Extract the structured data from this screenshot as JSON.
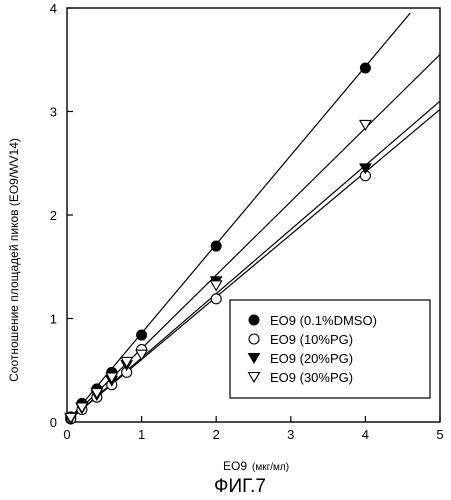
{
  "chart_data": {
    "type": "scatter",
    "xlabel": "EO9",
    "xlabel_unit": "(мкг/мл)",
    "ylabel": "Соотношение площадей пиков (EO9/WV14)",
    "caption": "ФИГ.7",
    "xlim": [
      0,
      5
    ],
    "ylim": [
      0,
      4
    ],
    "xticks": [
      0,
      1,
      2,
      3,
      4,
      5
    ],
    "yticks": [
      0,
      1,
      2,
      3,
      4
    ],
    "grid": false,
    "legend_position": "bottom-right",
    "series": [
      {
        "name": "EO9 (0.1%DMSO)",
        "marker": "filled-circle",
        "x": [
          0.05,
          0.2,
          0.4,
          0.6,
          1.0,
          2.0,
          4.0
        ],
        "y": [
          0.05,
          0.18,
          0.32,
          0.48,
          0.84,
          1.7,
          3.42
        ],
        "fit": {
          "x0": 0,
          "y0": 0,
          "x1": 4.6,
          "y1": 3.95
        }
      },
      {
        "name": "EO9 (10%PG)",
        "marker": "open-circle",
        "x": [
          0.05,
          0.2,
          0.4,
          0.6,
          0.8,
          1.0,
          2.0,
          4.0
        ],
        "y": [
          0.03,
          0.12,
          0.24,
          0.36,
          0.48,
          0.7,
          1.19,
          2.38
        ],
        "fit": {
          "x0": 0,
          "y0": 0,
          "x1": 5.0,
          "y1": 3.02
        }
      },
      {
        "name": "EO9 (20%PG)",
        "marker": "filled-triangle-down",
        "x": [
          0.05,
          0.2,
          0.4,
          0.6,
          0.8,
          2.0,
          4.0
        ],
        "y": [
          0.03,
          0.13,
          0.26,
          0.4,
          0.55,
          1.36,
          2.45
        ],
        "fit": {
          "x0": 0,
          "y0": 0,
          "x1": 5.0,
          "y1": 3.1
        }
      },
      {
        "name": "EO9 (30%PG)",
        "marker": "open-triangle-down",
        "x": [
          0.05,
          0.2,
          0.4,
          0.6,
          0.8,
          1.0,
          2.0,
          4.0
        ],
        "y": [
          0.04,
          0.14,
          0.28,
          0.43,
          0.58,
          0.65,
          1.32,
          2.87
        ],
        "fit": {
          "x0": 0,
          "y0": 0,
          "x1": 5.0,
          "y1": 3.55
        }
      }
    ]
  }
}
